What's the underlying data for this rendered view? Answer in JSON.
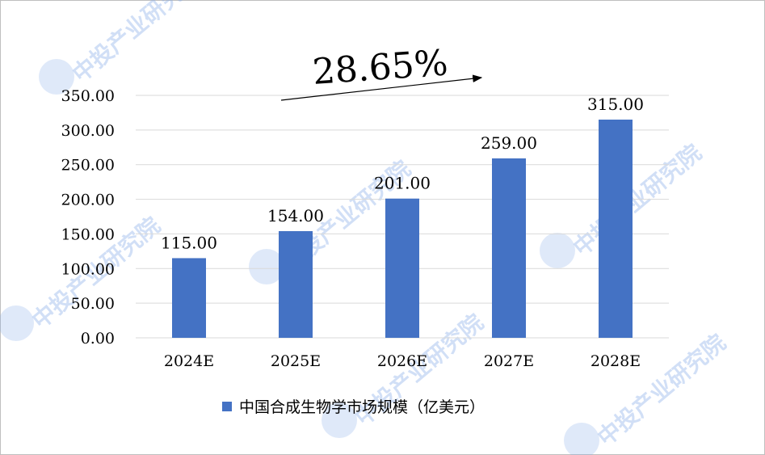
{
  "chart_data": {
    "type": "bar",
    "categories": [
      "2024E",
      "2025E",
      "2026E",
      "2027E",
      "2028E"
    ],
    "series": [
      {
        "name": "中国合成生物学市场规模（亿美元）",
        "values": [
          115.0,
          154.0,
          201.0,
          259.0,
          315.0
        ],
        "color": "#4472c4"
      }
    ],
    "data_labels": [
      "115.00",
      "154.00",
      "201.00",
      "259.00",
      "315.00"
    ],
    "y_ticks": [
      "0.00",
      "50.00",
      "100.00",
      "150.00",
      "200.00",
      "250.00",
      "300.00",
      "350.00"
    ],
    "ylim": [
      0,
      350
    ],
    "grid": true,
    "legend_position": "bottom",
    "annotation": {
      "text": "28.65%",
      "arrow": true
    }
  },
  "watermark": {
    "text": "中投产业研究院",
    "color": "#7ea6e8"
  }
}
